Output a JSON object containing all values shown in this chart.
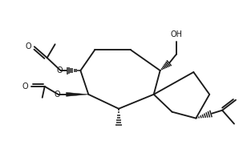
{
  "bg": "#ffffff",
  "lc": "#1a1a1a",
  "lw": 1.35,
  "fs": 7.0,
  "dpi": 100,
  "fw": 3.08,
  "fh": 1.91,
  "xlim": [
    0,
    308
  ],
  "ylim": [
    0,
    191
  ]
}
